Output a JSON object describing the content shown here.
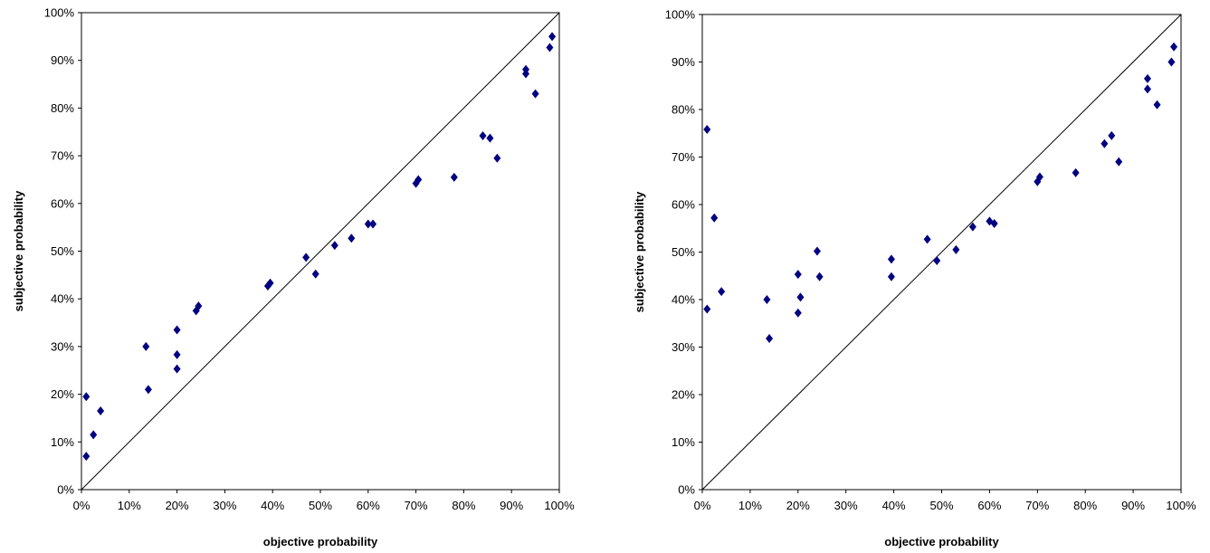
{
  "colors": {
    "marker": "#000080",
    "frame": "#000000",
    "diagonal": "#000000",
    "background": "#ffffff"
  },
  "chart_data": [
    {
      "type": "scatter",
      "title": "",
      "xlabel": "objective probability",
      "ylabel": "subjective probability",
      "xlim": [
        0,
        100
      ],
      "ylim": [
        0,
        100
      ],
      "unit": "%",
      "grid": false,
      "legend": "none",
      "reference_line": "diagonal",
      "ticks": [
        "0%",
        "10%",
        "20%",
        "30%",
        "40%",
        "50%",
        "60%",
        "70%",
        "80%",
        "90%",
        "100%"
      ],
      "series": [
        {
          "marker": "diamond",
          "points": [
            {
              "x": 1,
              "y": 7
            },
            {
              "x": 1,
              "y": 19.5
            },
            {
              "x": 2.5,
              "y": 11.5
            },
            {
              "x": 4,
              "y": 16.5
            },
            {
              "x": 13.5,
              "y": 30
            },
            {
              "x": 14,
              "y": 21
            },
            {
              "x": 20,
              "y": 25.3
            },
            {
              "x": 20,
              "y": 28.3
            },
            {
              "x": 20,
              "y": 33.5
            },
            {
              "x": 24,
              "y": 37.5
            },
            {
              "x": 24.5,
              "y": 38.5
            },
            {
              "x": 39,
              "y": 42.7
            },
            {
              "x": 39.5,
              "y": 43.3
            },
            {
              "x": 47,
              "y": 48.7
            },
            {
              "x": 49,
              "y": 45.2
            },
            {
              "x": 53,
              "y": 51.2
            },
            {
              "x": 56.5,
              "y": 52.7
            },
            {
              "x": 60,
              "y": 55.7
            },
            {
              "x": 61,
              "y": 55.7
            },
            {
              "x": 70,
              "y": 64.2
            },
            {
              "x": 70.5,
              "y": 65
            },
            {
              "x": 78,
              "y": 65.5
            },
            {
              "x": 84,
              "y": 74.2
            },
            {
              "x": 85.5,
              "y": 73.7
            },
            {
              "x": 87,
              "y": 69.5
            },
            {
              "x": 93,
              "y": 87.2
            },
            {
              "x": 93,
              "y": 88.1
            },
            {
              "x": 95,
              "y": 83
            },
            {
              "x": 98,
              "y": 92.7
            },
            {
              "x": 98.5,
              "y": 95
            }
          ]
        }
      ]
    },
    {
      "type": "scatter",
      "title": "",
      "xlabel": "objective probability",
      "ylabel": "subjective probability",
      "xlim": [
        0,
        100
      ],
      "ylim": [
        0,
        100
      ],
      "unit": "%",
      "grid": false,
      "legend": "none",
      "reference_line": "diagonal",
      "ticks": [
        "0%",
        "10%",
        "20%",
        "30%",
        "40%",
        "50%",
        "60%",
        "70%",
        "80%",
        "90%",
        "100%"
      ],
      "series": [
        {
          "marker": "diamond",
          "points": [
            {
              "x": 1,
              "y": 75.8
            },
            {
              "x": 1,
              "y": 38
            },
            {
              "x": 2.5,
              "y": 57.2
            },
            {
              "x": 4,
              "y": 41.7
            },
            {
              "x": 13.5,
              "y": 40
            },
            {
              "x": 14,
              "y": 31.8
            },
            {
              "x": 20,
              "y": 45.3
            },
            {
              "x": 20,
              "y": 37.2
            },
            {
              "x": 20.5,
              "y": 40.5
            },
            {
              "x": 24,
              "y": 50.2
            },
            {
              "x": 24.5,
              "y": 44.8
            },
            {
              "x": 39.5,
              "y": 44.8
            },
            {
              "x": 39.5,
              "y": 48.5
            },
            {
              "x": 47,
              "y": 52.7
            },
            {
              "x": 49,
              "y": 48.2
            },
            {
              "x": 53,
              "y": 50.5
            },
            {
              "x": 56.5,
              "y": 55.3
            },
            {
              "x": 60,
              "y": 56.5
            },
            {
              "x": 61,
              "y": 56
            },
            {
              "x": 70,
              "y": 64.8
            },
            {
              "x": 70.5,
              "y": 65.8
            },
            {
              "x": 78,
              "y": 66.7
            },
            {
              "x": 84,
              "y": 72.8
            },
            {
              "x": 85.5,
              "y": 74.5
            },
            {
              "x": 87,
              "y": 69
            },
            {
              "x": 93,
              "y": 84.3
            },
            {
              "x": 93,
              "y": 86.5
            },
            {
              "x": 95,
              "y": 81
            },
            {
              "x": 98,
              "y": 90
            },
            {
              "x": 98.5,
              "y": 93.2
            }
          ]
        }
      ]
    }
  ]
}
